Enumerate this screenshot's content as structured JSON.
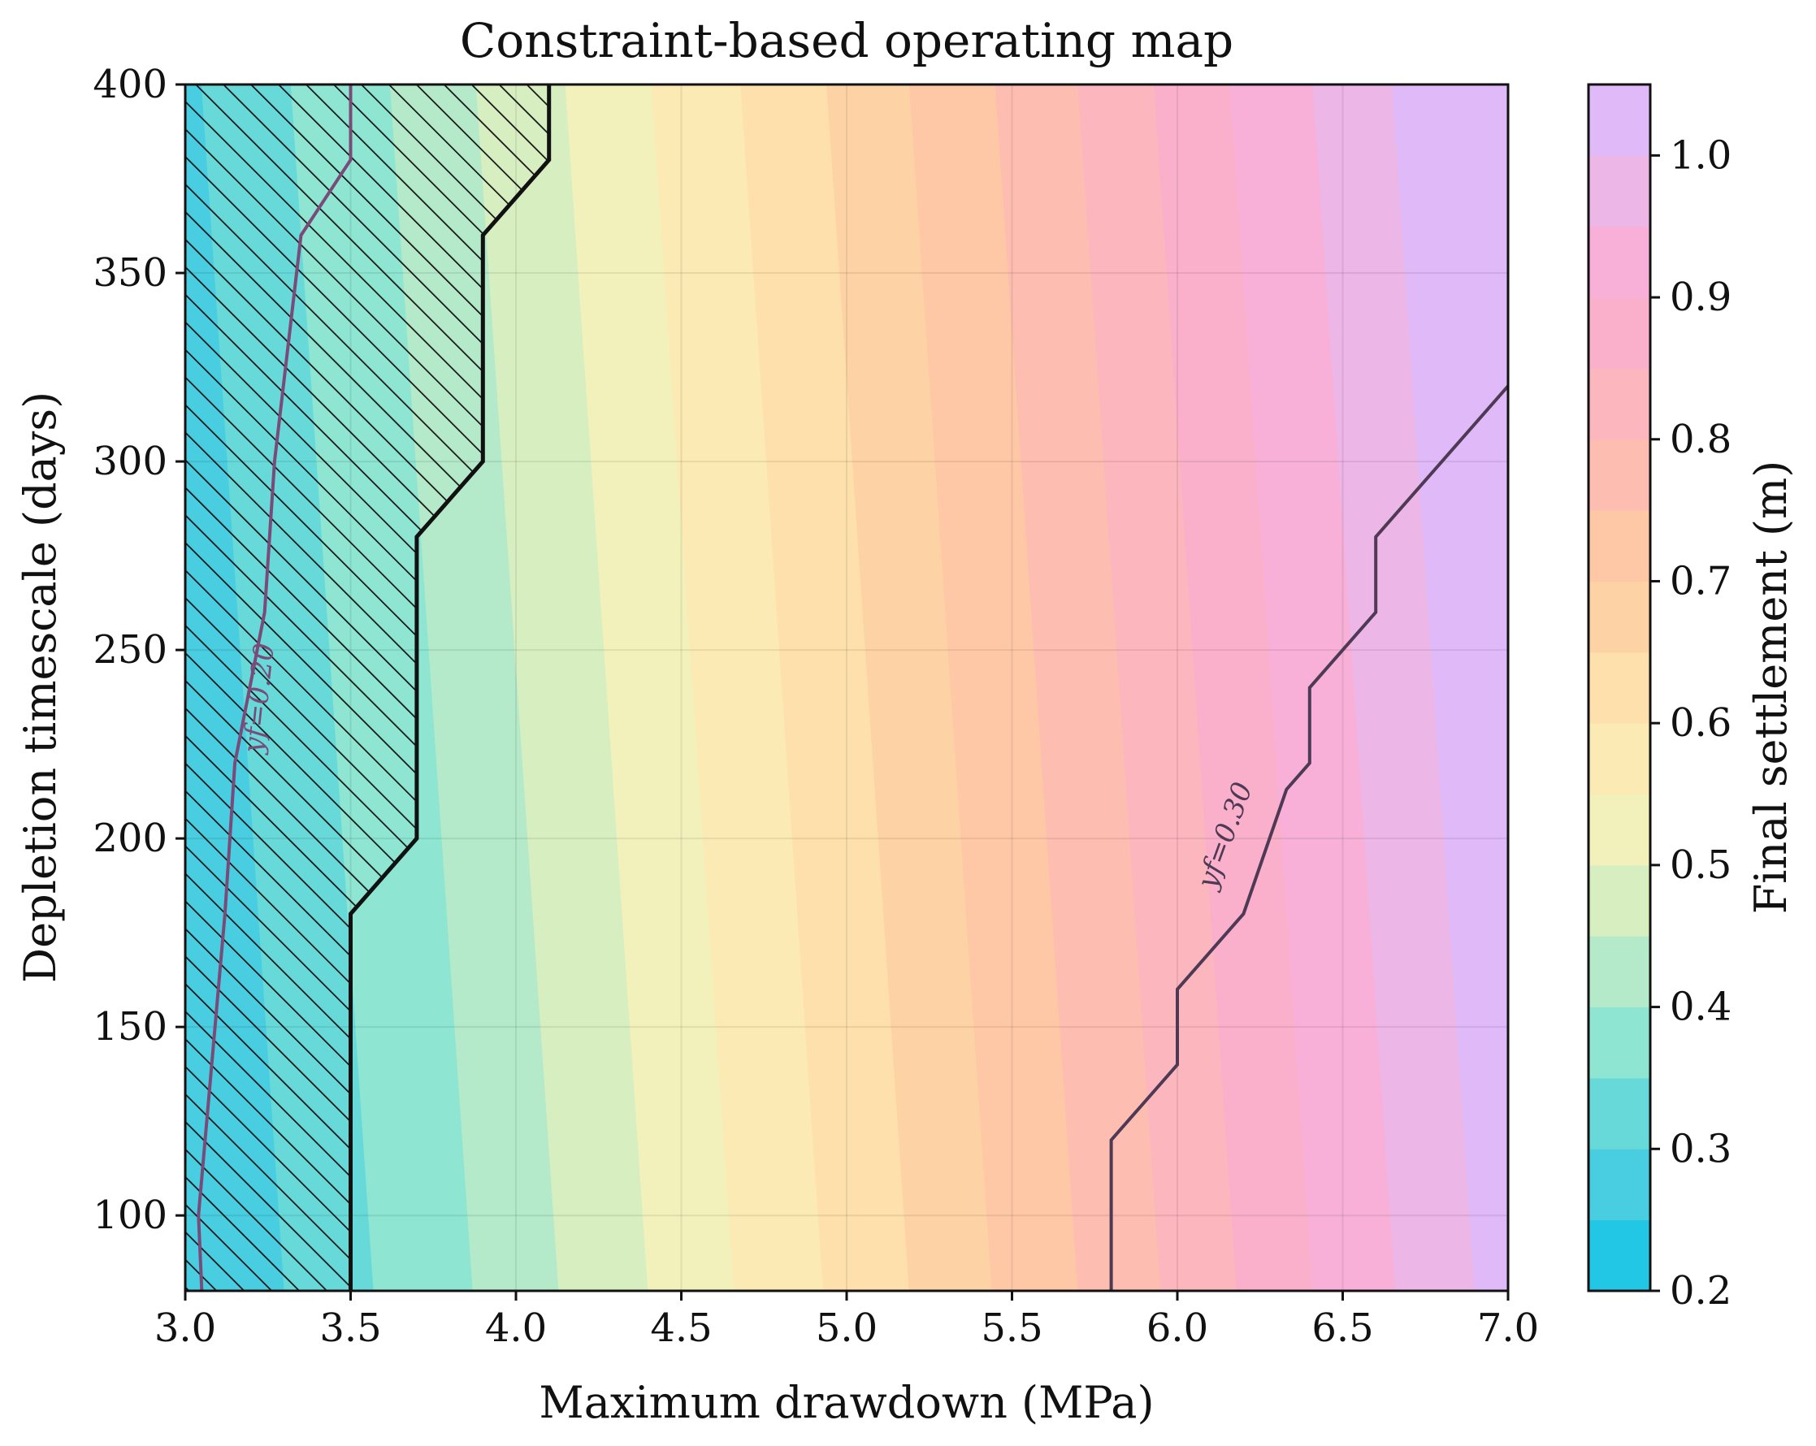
{
  "chart_data": {
    "type": "heatmap",
    "title": "Constraint-based operating map",
    "xlabel": "Maximum drawdown (MPa)",
    "ylabel": "Depletion timescale (days)",
    "colorbar_label": "Final settlement (m)",
    "xlim": [
      3.0,
      7.0
    ],
    "ylim": [
      80,
      400
    ],
    "x_ticks": [
      "3.0",
      "3.5",
      "4.0",
      "4.5",
      "5.0",
      "5.5",
      "6.0",
      "6.5",
      "7.0"
    ],
    "y_ticks": [
      "100",
      "150",
      "200",
      "250",
      "300",
      "350",
      "400"
    ],
    "colorbar_ticks": [
      "0.2",
      "0.3",
      "0.4",
      "0.5",
      "0.6",
      "0.7",
      "0.8",
      "0.9",
      "1.0"
    ],
    "colorbar_range": [
      0.2,
      1.05
    ],
    "grid": true,
    "fill_levels": [
      {
        "from": 0.2,
        "to": 0.25,
        "color": "#22c7e6"
      },
      {
        "from": 0.25,
        "to": 0.3,
        "color": "#49cde0"
      },
      {
        "from": 0.3,
        "to": 0.35,
        "color": "#67d9d8"
      },
      {
        "from": 0.35,
        "to": 0.4,
        "color": "#8de5d2"
      },
      {
        "from": 0.4,
        "to": 0.45,
        "color": "#b4e9c9"
      },
      {
        "from": 0.45,
        "to": 0.5,
        "color": "#d7eec0"
      },
      {
        "from": 0.5,
        "to": 0.55,
        "color": "#f2f1bc"
      },
      {
        "from": 0.55,
        "to": 0.6,
        "color": "#fbeab4"
      },
      {
        "from": 0.6,
        "to": 0.65,
        "color": "#fde0ac"
      },
      {
        "from": 0.65,
        "to": 0.7,
        "color": "#fdd3a5"
      },
      {
        "from": 0.7,
        "to": 0.75,
        "color": "#fec8a6"
      },
      {
        "from": 0.75,
        "to": 0.8,
        "color": "#fdbdb0"
      },
      {
        "from": 0.8,
        "to": 0.85,
        "color": "#fcb6bd"
      },
      {
        "from": 0.85,
        "to": 0.9,
        "color": "#fab0cb"
      },
      {
        "from": 0.9,
        "to": 0.95,
        "color": "#f8b0d8"
      },
      {
        "from": 0.95,
        "to": 1.0,
        "color": "#ecb6e6"
      },
      {
        "from": 1.0,
        "to": 1.05,
        "color": "#e0baf8"
      }
    ],
    "band_boundaries_x": [
      3.05,
      3.32,
      3.62,
      3.88,
      4.15,
      4.41,
      4.68,
      4.94,
      5.19,
      5.45,
      5.7,
      5.93,
      6.16,
      6.41,
      6.65,
      6.87
    ],
    "constraint_boundary": [
      {
        "x": 3.5,
        "y": 80
      },
      {
        "x": 3.5,
        "y": 180
      },
      {
        "x": 3.7,
        "y": 200
      },
      {
        "x": 3.7,
        "y": 280
      },
      {
        "x": 3.9,
        "y": 300
      },
      {
        "x": 3.9,
        "y": 360
      },
      {
        "x": 4.1,
        "y": 380
      },
      {
        "x": 4.1,
        "y": 400
      }
    ],
    "contours": [
      {
        "label": "yf=0.20",
        "color": "#7a4a78",
        "points": [
          {
            "x": 3.05,
            "y": 80
          },
          {
            "x": 3.04,
            "y": 100
          },
          {
            "x": 3.08,
            "y": 140
          },
          {
            "x": 3.12,
            "y": 180
          },
          {
            "x": 3.15,
            "y": 220
          },
          {
            "x": 3.24,
            "y": 260
          },
          {
            "x": 3.27,
            "y": 300
          },
          {
            "x": 3.35,
            "y": 360
          },
          {
            "x": 3.5,
            "y": 380
          },
          {
            "x": 3.5,
            "y": 400
          }
        ]
      },
      {
        "label": "yf=0.30",
        "color": "#4e3a55",
        "points": [
          {
            "x": 5.8,
            "y": 80
          },
          {
            "x": 5.8,
            "y": 120
          },
          {
            "x": 6.0,
            "y": 140
          },
          {
            "x": 6.0,
            "y": 160
          },
          {
            "x": 6.2,
            "y": 180
          },
          {
            "x": 6.33,
            "y": 213
          },
          {
            "x": 6.4,
            "y": 220
          },
          {
            "x": 6.4,
            "y": 240
          },
          {
            "x": 6.6,
            "y": 260
          },
          {
            "x": 6.6,
            "y": 280
          },
          {
            "x": 7.0,
            "y": 320
          }
        ]
      }
    ]
  }
}
